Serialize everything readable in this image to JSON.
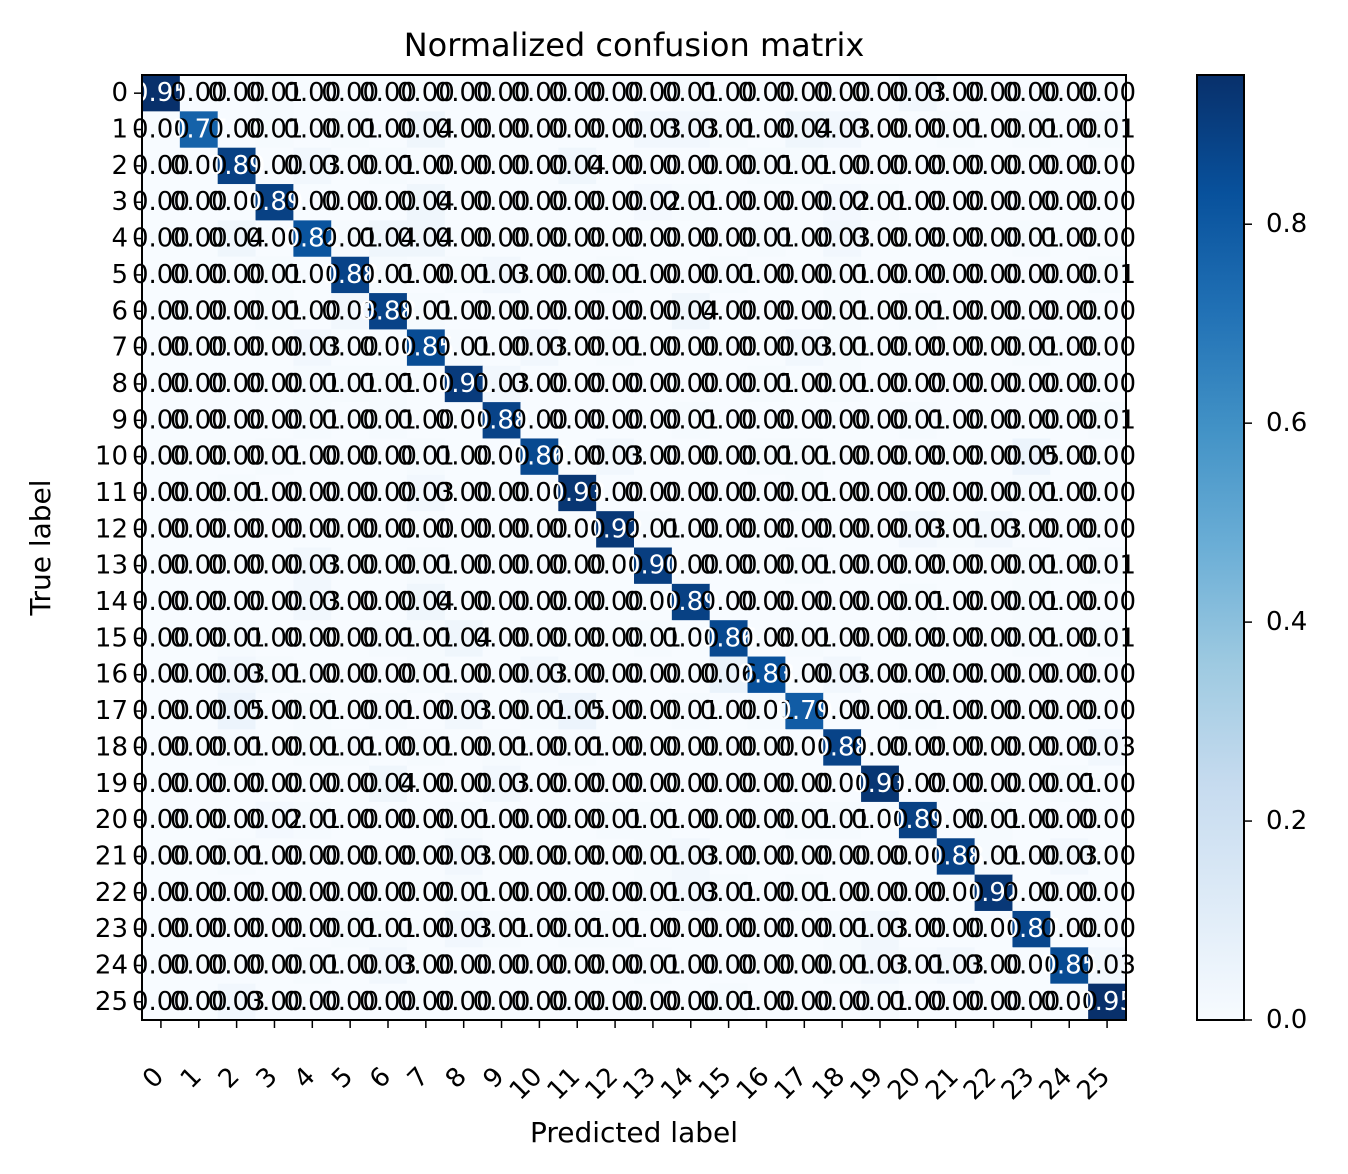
{
  "chart_data": {
    "type": "heatmap",
    "title": "Normalized confusion matrix",
    "xlabel": "Predicted label",
    "ylabel": "True label",
    "x_tick_labels": [
      "0",
      "1",
      "2",
      "3",
      "4",
      "5",
      "6",
      "7",
      "8",
      "9",
      "10",
      "11",
      "12",
      "13",
      "14",
      "15",
      "16",
      "17",
      "18",
      "19",
      "20",
      "21",
      "22",
      "23",
      "24",
      "25"
    ],
    "y_tick_labels": [
      "0",
      "1",
      "2",
      "3",
      "4",
      "5",
      "6",
      "7",
      "8",
      "9",
      "10",
      "11",
      "12",
      "13",
      "14",
      "15",
      "16",
      "17",
      "18",
      "19",
      "20",
      "21",
      "22",
      "23",
      "24",
      "25"
    ],
    "colormap": "Blues",
    "colorbar": {
      "range": [
        0.0,
        0.95
      ],
      "tick_labels": [
        "0.0",
        "0.2",
        "0.4",
        "0.6",
        "0.8"
      ],
      "tick_values": [
        0.0,
        0.2,
        0.4,
        0.6,
        0.8
      ]
    },
    "values": [
      [
        0.95,
        0.0,
        0.0,
        0.01,
        0.0,
        0.0,
        0.0,
        0.0,
        0.0,
        0.0,
        0.0,
        0.0,
        0.0,
        0.0,
        0.01,
        0.0,
        0.0,
        0.0,
        0.0,
        0.0,
        0.03,
        0.0,
        0.0,
        0.0,
        0.0,
        0.0
      ],
      [
        0.0,
        0.77,
        0.0,
        0.01,
        0.0,
        0.01,
        0.0,
        0.04,
        0.0,
        0.0,
        0.0,
        0.0,
        0.0,
        0.03,
        0.03,
        0.01,
        0.0,
        0.04,
        0.03,
        0.0,
        0.0,
        0.01,
        0.0,
        0.01,
        0.0,
        0.01
      ],
      [
        0.0,
        0.0,
        0.89,
        0.0,
        0.03,
        0.0,
        0.01,
        0.0,
        0.0,
        0.0,
        0.0,
        0.04,
        0.0,
        0.0,
        0.0,
        0.0,
        0.01,
        0.01,
        0.0,
        0.0,
        0.0,
        0.0,
        0.0,
        0.0,
        0.0,
        0.0
      ],
      [
        0.0,
        0.0,
        0.0,
        0.89,
        0.0,
        0.0,
        0.0,
        0.04,
        0.0,
        0.0,
        0.0,
        0.0,
        0.0,
        0.02,
        0.01,
        0.0,
        0.0,
        0.0,
        0.02,
        0.01,
        0.0,
        0.0,
        0.0,
        0.0,
        0.0,
        0.0
      ],
      [
        0.0,
        0.0,
        0.04,
        0.0,
        0.82,
        0.01,
        0.04,
        0.04,
        0.0,
        0.0,
        0.0,
        0.0,
        0.0,
        0.0,
        0.0,
        0.0,
        0.01,
        0.0,
        0.03,
        0.0,
        0.0,
        0.0,
        0.0,
        0.01,
        0.0,
        0.0
      ],
      [
        0.0,
        0.0,
        0.0,
        0.01,
        0.0,
        0.88,
        0.01,
        0.0,
        0.01,
        0.03,
        0.0,
        0.0,
        0.01,
        0.0,
        0.0,
        0.01,
        0.0,
        0.0,
        0.01,
        0.0,
        0.0,
        0.0,
        0.0,
        0.0,
        0.0,
        0.01
      ],
      [
        0.0,
        0.0,
        0.0,
        0.01,
        0.0,
        0.03,
        0.88,
        0.01,
        0.0,
        0.0,
        0.0,
        0.0,
        0.0,
        0.0,
        0.04,
        0.0,
        0.0,
        0.0,
        0.01,
        0.0,
        0.01,
        0.0,
        0.0,
        0.0,
        0.0,
        0.0
      ],
      [
        0.0,
        0.0,
        0.0,
        0.0,
        0.03,
        0.0,
        0.0,
        0.85,
        0.01,
        0.0,
        0.03,
        0.0,
        0.01,
        0.0,
        0.0,
        0.0,
        0.0,
        0.03,
        0.01,
        0.0,
        0.0,
        0.0,
        0.0,
        0.01,
        0.0,
        0.0
      ],
      [
        0.0,
        0.0,
        0.0,
        0.0,
        0.01,
        0.01,
        0.01,
        0.0,
        0.91,
        0.03,
        0.0,
        0.0,
        0.0,
        0.0,
        0.0,
        0.0,
        0.01,
        0.0,
        0.01,
        0.0,
        0.0,
        0.0,
        0.0,
        0.0,
        0.0,
        0.0
      ],
      [
        0.0,
        0.0,
        0.0,
        0.0,
        0.01,
        0.0,
        0.01,
        0.0,
        0.0,
        0.88,
        0.0,
        0.0,
        0.0,
        0.0,
        0.01,
        0.0,
        0.0,
        0.0,
        0.0,
        0.0,
        0.01,
        0.0,
        0.0,
        0.0,
        0.0,
        0.01
      ],
      [
        0.0,
        0.0,
        0.0,
        0.01,
        0.0,
        0.0,
        0.0,
        0.01,
        0.0,
        0.0,
        0.86,
        0.0,
        0.03,
        0.0,
        0.0,
        0.0,
        0.01,
        0.01,
        0.0,
        0.0,
        0.0,
        0.0,
        0.0,
        0.05,
        0.0,
        0.0
      ],
      [
        0.0,
        0.0,
        0.01,
        0.0,
        0.0,
        0.0,
        0.0,
        0.03,
        0.0,
        0.0,
        0.0,
        0.93,
        0.0,
        0.0,
        0.0,
        0.0,
        0.0,
        0.01,
        0.0,
        0.0,
        0.0,
        0.0,
        0.0,
        0.01,
        0.0,
        0.0
      ],
      [
        0.0,
        0.0,
        0.0,
        0.0,
        0.0,
        0.0,
        0.0,
        0.0,
        0.0,
        0.0,
        0.0,
        0.0,
        0.92,
        0.01,
        0.0,
        0.0,
        0.0,
        0.0,
        0.0,
        0.0,
        0.03,
        0.01,
        0.03,
        0.0,
        0.0,
        0.0
      ],
      [
        0.0,
        0.0,
        0.0,
        0.0,
        0.03,
        0.0,
        0.0,
        0.01,
        0.0,
        0.0,
        0.0,
        0.0,
        0.0,
        0.9,
        0.0,
        0.0,
        0.0,
        0.01,
        0.0,
        0.0,
        0.0,
        0.0,
        0.0,
        0.01,
        0.0,
        0.01
      ],
      [
        0.0,
        0.0,
        0.0,
        0.0,
        0.03,
        0.0,
        0.0,
        0.04,
        0.0,
        0.0,
        0.0,
        0.0,
        0.0,
        0.0,
        0.89,
        0.0,
        0.0,
        0.0,
        0.0,
        0.0,
        0.01,
        0.0,
        0.0,
        0.01,
        0.0,
        0.0
      ],
      [
        0.0,
        0.0,
        0.01,
        0.0,
        0.0,
        0.0,
        0.01,
        0.01,
        0.04,
        0.0,
        0.0,
        0.0,
        0.0,
        0.01,
        0.0,
        0.86,
        0.0,
        0.01,
        0.0,
        0.0,
        0.0,
        0.0,
        0.0,
        0.01,
        0.0,
        0.01
      ],
      [
        0.0,
        0.0,
        0.03,
        0.01,
        0.0,
        0.0,
        0.0,
        0.01,
        0.0,
        0.0,
        0.03,
        0.0,
        0.0,
        0.0,
        0.0,
        0.06,
        0.83,
        0.0,
        0.03,
        0.0,
        0.0,
        0.0,
        0.0,
        0.0,
        0.0,
        0.0
      ],
      [
        0.0,
        0.0,
        0.05,
        0.0,
        0.01,
        0.0,
        0.01,
        0.0,
        0.03,
        0.0,
        0.01,
        0.05,
        0.0,
        0.0,
        0.01,
        0.0,
        0.01,
        0.79,
        0.0,
        0.0,
        0.01,
        0.0,
        0.0,
        0.0,
        0.0,
        0.0
      ],
      [
        0.0,
        0.0,
        0.01,
        0.0,
        0.01,
        0.01,
        0.0,
        0.01,
        0.0,
        0.01,
        0.0,
        0.01,
        0.0,
        0.0,
        0.0,
        0.0,
        0.0,
        0.0,
        0.88,
        0.0,
        0.0,
        0.0,
        0.0,
        0.0,
        0.0,
        0.03
      ],
      [
        0.0,
        0.0,
        0.0,
        0.0,
        0.0,
        0.0,
        0.04,
        0.0,
        0.0,
        0.03,
        0.0,
        0.0,
        0.0,
        0.0,
        0.0,
        0.0,
        0.0,
        0.0,
        0.0,
        0.93,
        0.0,
        0.0,
        0.0,
        0.0,
        0.01,
        0.0
      ],
      [
        0.0,
        0.0,
        0.0,
        0.02,
        0.01,
        0.0,
        0.0,
        0.0,
        0.01,
        0.0,
        0.0,
        0.0,
        0.01,
        0.01,
        0.0,
        0.0,
        0.0,
        0.01,
        0.01,
        0.0,
        0.89,
        0.0,
        0.01,
        0.0,
        0.0,
        0.0
      ],
      [
        0.0,
        0.0,
        0.01,
        0.0,
        0.0,
        0.0,
        0.0,
        0.0,
        0.03,
        0.0,
        0.0,
        0.0,
        0.0,
        0.01,
        0.03,
        0.0,
        0.0,
        0.0,
        0.0,
        0.0,
        0.0,
        0.88,
        0.01,
        0.0,
        0.03,
        0.0
      ],
      [
        0.0,
        0.0,
        0.0,
        0.0,
        0.0,
        0.0,
        0.0,
        0.0,
        0.01,
        0.0,
        0.0,
        0.0,
        0.0,
        0.01,
        0.03,
        0.01,
        0.0,
        0.01,
        0.0,
        0.0,
        0.0,
        0.0,
        0.92,
        0.0,
        0.0,
        0.0
      ],
      [
        0.0,
        0.0,
        0.0,
        0.0,
        0.0,
        0.01,
        0.01,
        0.0,
        0.03,
        0.01,
        0.0,
        0.01,
        0.01,
        0.0,
        0.0,
        0.0,
        0.0,
        0.0,
        0.01,
        0.03,
        0.0,
        0.0,
        0.0,
        0.87,
        0.0,
        0.0
      ],
      [
        0.0,
        0.0,
        0.0,
        0.0,
        0.01,
        0.0,
        0.03,
        0.0,
        0.0,
        0.0,
        0.0,
        0.0,
        0.0,
        0.01,
        0.0,
        0.0,
        0.0,
        0.0,
        0.01,
        0.03,
        0.01,
        0.03,
        0.0,
        0.0,
        0.85,
        0.03
      ],
      [
        0.0,
        0.0,
        0.03,
        0.0,
        0.0,
        0.0,
        0.0,
        0.0,
        0.0,
        0.0,
        0.0,
        0.0,
        0.0,
        0.0,
        0.0,
        0.01,
        0.0,
        0.0,
        0.0,
        0.01,
        0.0,
        0.0,
        0.0,
        0.0,
        0.0,
        0.95
      ]
    ]
  }
}
